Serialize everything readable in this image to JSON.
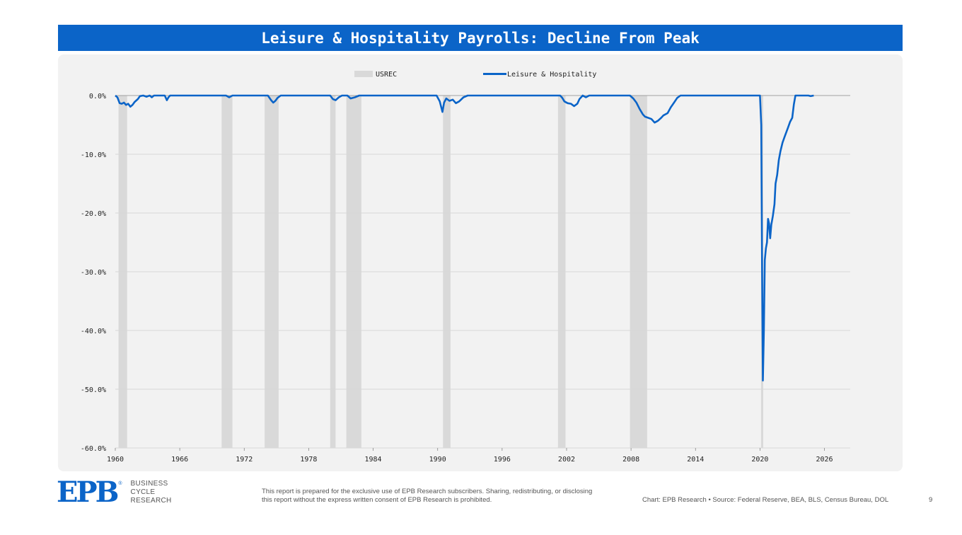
{
  "header": {
    "title": "Leisure & Hospitality Payrolls: Decline From Peak"
  },
  "chart_data": {
    "type": "line",
    "title": "Leisure & Hospitality Payrolls: Decline From Peak",
    "legend": {
      "placement": "top-center",
      "items": [
        {
          "name": "USREC",
          "kind": "area",
          "color": "#d9d9d9"
        },
        {
          "name": "Leisure & Hospitality",
          "kind": "line",
          "color": "#0b64c8"
        }
      ]
    },
    "xlim": [
      1960,
      2028.4
    ],
    "ylim": [
      -60,
      0
    ],
    "x_ticks": [
      "1960",
      "1966",
      "1972",
      "1978",
      "1984",
      "1990",
      "1996",
      "2002",
      "2008",
      "2014",
      "2020",
      "2026"
    ],
    "y_ticks": [
      "0.0%",
      "-10.0%",
      "-20.0%",
      "-30.0%",
      "-40.0%",
      "-50.0%",
      "-60.0%"
    ],
    "grid": true,
    "recessions": [
      [
        1960.3,
        1961.1
      ],
      [
        1969.9,
        1970.9
      ],
      [
        1973.9,
        1975.2
      ],
      [
        1980.0,
        1980.5
      ],
      [
        1981.5,
        1982.9
      ],
      [
        1990.5,
        1991.2
      ],
      [
        2001.2,
        2001.9
      ],
      [
        2007.9,
        2009.5
      ],
      [
        2020.1,
        2020.3
      ]
    ],
    "series": [
      {
        "name": "Leisure & Hospitality",
        "color": "#0b64c8",
        "points": [
          [
            1960.0,
            0
          ],
          [
            1960.2,
            -0.3
          ],
          [
            1960.4,
            -1.3
          ],
          [
            1960.6,
            -1.4
          ],
          [
            1960.8,
            -1.2
          ],
          [
            1961.0,
            -1.6
          ],
          [
            1961.2,
            -1.4
          ],
          [
            1961.4,
            -1.9
          ],
          [
            1961.6,
            -1.6
          ],
          [
            1961.8,
            -1.1
          ],
          [
            1962.1,
            -0.6
          ],
          [
            1962.3,
            -0.1
          ],
          [
            1962.6,
            0
          ],
          [
            1962.9,
            -0.2
          ],
          [
            1963.2,
            0
          ],
          [
            1963.4,
            -0.3
          ],
          [
            1963.6,
            0
          ],
          [
            1964.6,
            0
          ],
          [
            1964.8,
            -0.8
          ],
          [
            1964.95,
            -0.3
          ],
          [
            1965.1,
            0
          ],
          [
            1970.3,
            0
          ],
          [
            1970.6,
            -0.3
          ],
          [
            1970.9,
            0
          ],
          [
            1974.2,
            0
          ],
          [
            1974.5,
            -0.8
          ],
          [
            1974.7,
            -1.2
          ],
          [
            1974.9,
            -0.9
          ],
          [
            1975.1,
            -0.4
          ],
          [
            1975.4,
            0
          ],
          [
            1980.0,
            0
          ],
          [
            1980.25,
            -0.6
          ],
          [
            1980.5,
            -0.8
          ],
          [
            1980.8,
            -0.3
          ],
          [
            1981.1,
            0
          ],
          [
            1981.6,
            0
          ],
          [
            1981.9,
            -0.5
          ],
          [
            1982.3,
            -0.3
          ],
          [
            1982.7,
            0
          ],
          [
            1989.9,
            0
          ],
          [
            1990.2,
            -1.0
          ],
          [
            1990.45,
            -2.8
          ],
          [
            1990.6,
            -1.2
          ],
          [
            1990.8,
            -0.5
          ],
          [
            1991.1,
            -0.9
          ],
          [
            1991.4,
            -0.7
          ],
          [
            1991.7,
            -1.3
          ],
          [
            1992.0,
            -1.0
          ],
          [
            1992.4,
            -0.3
          ],
          [
            1992.8,
            0
          ],
          [
            2001.4,
            0
          ],
          [
            2001.6,
            -0.4
          ],
          [
            2001.8,
            -1.0
          ],
          [
            2002.1,
            -1.3
          ],
          [
            2002.4,
            -1.4
          ],
          [
            2002.7,
            -1.8
          ],
          [
            2003.0,
            -1.4
          ],
          [
            2003.2,
            -0.6
          ],
          [
            2003.5,
            0
          ],
          [
            2003.8,
            -0.3
          ],
          [
            2004.1,
            0
          ],
          [
            2007.9,
            0
          ],
          [
            2008.2,
            -0.5
          ],
          [
            2008.5,
            -1.2
          ],
          [
            2008.8,
            -2.3
          ],
          [
            2009.1,
            -3.2
          ],
          [
            2009.3,
            -3.6
          ],
          [
            2009.6,
            -3.8
          ],
          [
            2009.9,
            -4.0
          ],
          [
            2010.2,
            -4.6
          ],
          [
            2010.5,
            -4.3
          ],
          [
            2010.8,
            -3.8
          ],
          [
            2011.0,
            -3.4
          ],
          [
            2011.4,
            -3.0
          ],
          [
            2011.7,
            -2.0
          ],
          [
            2012.0,
            -1.2
          ],
          [
            2012.3,
            -0.4
          ],
          [
            2012.6,
            0
          ],
          [
            2020.0,
            0
          ],
          [
            2020.12,
            -5
          ],
          [
            2020.2,
            -30
          ],
          [
            2020.27,
            -48.5
          ],
          [
            2020.36,
            -40
          ],
          [
            2020.45,
            -28
          ],
          [
            2020.55,
            -26
          ],
          [
            2020.65,
            -25
          ],
          [
            2020.75,
            -21
          ],
          [
            2020.85,
            -21.8
          ],
          [
            2020.95,
            -24.3
          ],
          [
            2021.05,
            -22
          ],
          [
            2021.2,
            -20.5
          ],
          [
            2021.35,
            -18.5
          ],
          [
            2021.45,
            -15
          ],
          [
            2021.6,
            -13.5
          ],
          [
            2021.75,
            -11
          ],
          [
            2021.9,
            -9.5
          ],
          [
            2022.1,
            -8
          ],
          [
            2022.3,
            -7
          ],
          [
            2022.6,
            -5.5
          ],
          [
            2022.8,
            -4.5
          ],
          [
            2023.0,
            -3.8
          ],
          [
            2023.15,
            -1.5
          ],
          [
            2023.3,
            0
          ],
          [
            2024.5,
            0
          ],
          [
            2024.7,
            -0.1
          ],
          [
            2025.0,
            0
          ]
        ]
      }
    ]
  },
  "footer": {
    "logo": "EPB",
    "logo_reg": "®",
    "logo_lines": [
      "BUSINESS",
      "CYCLE",
      "RESEARCH"
    ],
    "disclaimer": "This report is prepared for the exclusive use of EPB Research subscribers. Sharing, redistributing, or disclosing this report without the express written consent of EPB Research is prohibited.",
    "source": "Chart: EPB Research  •  Source: Federal Reserve, BEA, BLS, Census Bureau, DOL",
    "page_number": "9"
  },
  "colors": {
    "brand": "#0b64c8",
    "recession": "#d9d9d9",
    "panel": "#f2f2f2"
  }
}
